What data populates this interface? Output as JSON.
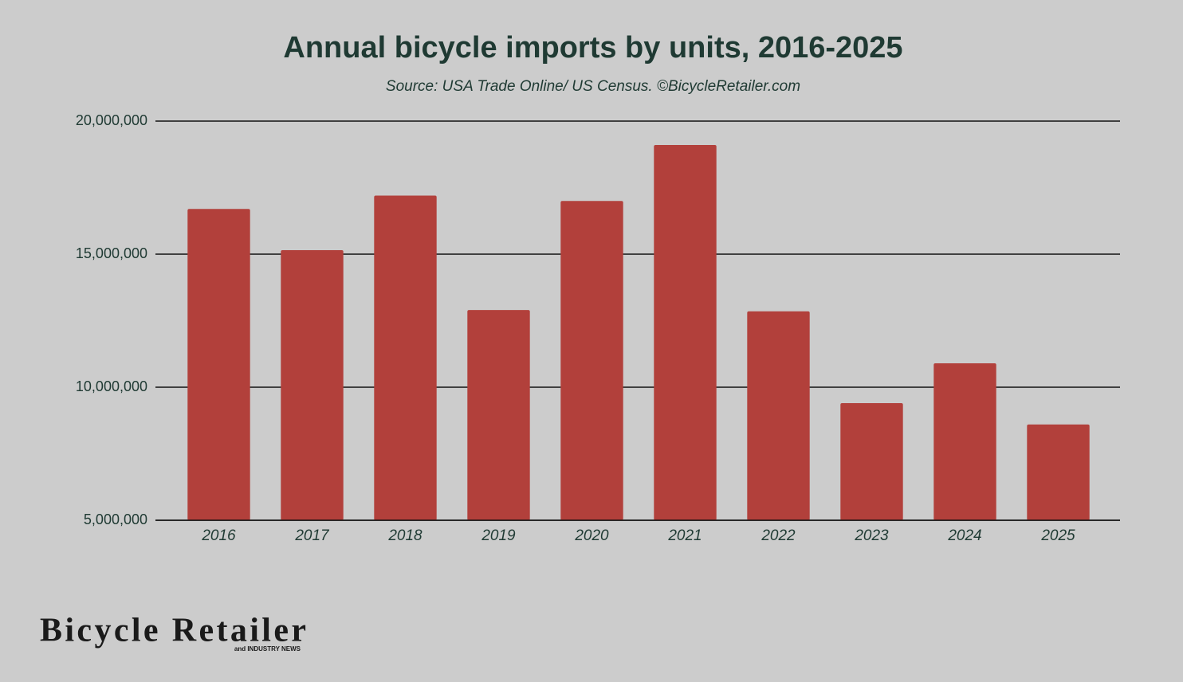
{
  "chart_data": {
    "type": "bar",
    "title": "Annual bicycle imports by units, 2016-2025",
    "subtitle": "Source: USA Trade Online/ US Census. ©BicycleRetailer.com",
    "categories": [
      "2016",
      "2017",
      "2018",
      "2019",
      "2020",
      "2021",
      "2022",
      "2023",
      "2024",
      "2025"
    ],
    "values": [
      16700000,
      15150000,
      17200000,
      12900000,
      17000000,
      19100000,
      12850000,
      9400000,
      10900000,
      8600000
    ],
    "color": "#b2403b",
    "ylim": [
      5000000,
      20000000
    ],
    "yticks": [
      {
        "value": 5000000,
        "label": "5,000,000"
      },
      {
        "value": 10000000,
        "label": "10,000,000"
      },
      {
        "value": 15000000,
        "label": "15,000,000"
      },
      {
        "value": 20000000,
        "label": "20,000,000"
      }
    ],
    "grid": true
  },
  "logo": {
    "name": "Bicycle Retailer",
    "tagline": "and INDUSTRY NEWS"
  }
}
